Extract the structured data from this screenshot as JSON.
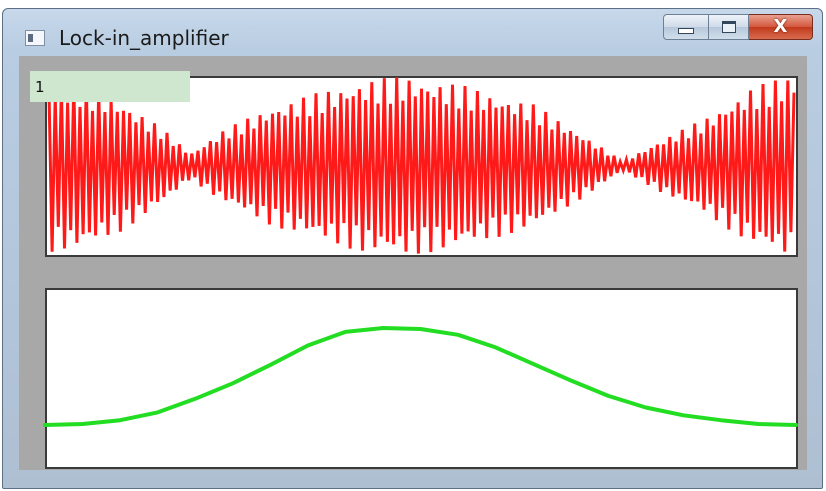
{
  "window": {
    "title": "Lock-in_amplifier",
    "close_glyph": "X"
  },
  "value_box": {
    "text": "1"
  },
  "icons": {
    "app": "window-app-icon",
    "minimize": "minimize-icon",
    "maximize": "maximize-icon",
    "close": "close-icon"
  },
  "colors": {
    "signal": "#ff1a1a",
    "output": "#22dd22",
    "plot_background": "#ffffff",
    "client_background": "#a8a8a8",
    "value_box_background": "#cfe6cf"
  },
  "chart_data": [
    {
      "type": "line",
      "series": [
        {
          "color": "#ff1a1a",
          "kind": "amplitude-modulated oscillation",
          "cycles": 120,
          "envelope": [
            [
              0.0,
              1.0
            ],
            [
              0.04,
              0.98
            ],
            [
              0.1,
              0.75
            ],
            [
              0.15,
              0.45
            ],
            [
              0.19,
              0.15
            ],
            [
              0.23,
              0.4
            ],
            [
              0.3,
              0.7
            ],
            [
              0.42,
              1.0
            ],
            [
              0.48,
              1.05
            ],
            [
              0.55,
              0.95
            ],
            [
              0.65,
              0.72
            ],
            [
              0.72,
              0.35
            ],
            [
              0.77,
              0.05
            ],
            [
              0.82,
              0.3
            ],
            [
              0.88,
              0.55
            ],
            [
              0.94,
              0.9
            ],
            [
              1.0,
              1.08
            ]
          ]
        }
      ]
    },
    {
      "type": "line",
      "series": [
        {
          "color": "#22dd22",
          "points": [
            [
              0.0,
              0.0
            ],
            [
              0.05,
              0.01
            ],
            [
              0.1,
              0.05
            ],
            [
              0.15,
              0.13
            ],
            [
              0.2,
              0.27
            ],
            [
              0.25,
              0.43
            ],
            [
              0.3,
              0.62
            ],
            [
              0.35,
              0.82
            ],
            [
              0.4,
              0.96
            ],
            [
              0.45,
              1.0
            ],
            [
              0.5,
              0.99
            ],
            [
              0.55,
              0.93
            ],
            [
              0.6,
              0.8
            ],
            [
              0.65,
              0.63
            ],
            [
              0.7,
              0.46
            ],
            [
              0.75,
              0.3
            ],
            [
              0.8,
              0.18
            ],
            [
              0.85,
              0.1
            ],
            [
              0.9,
              0.05
            ],
            [
              0.95,
              0.01
            ],
            [
              1.0,
              0.0
            ]
          ]
        }
      ]
    }
  ]
}
